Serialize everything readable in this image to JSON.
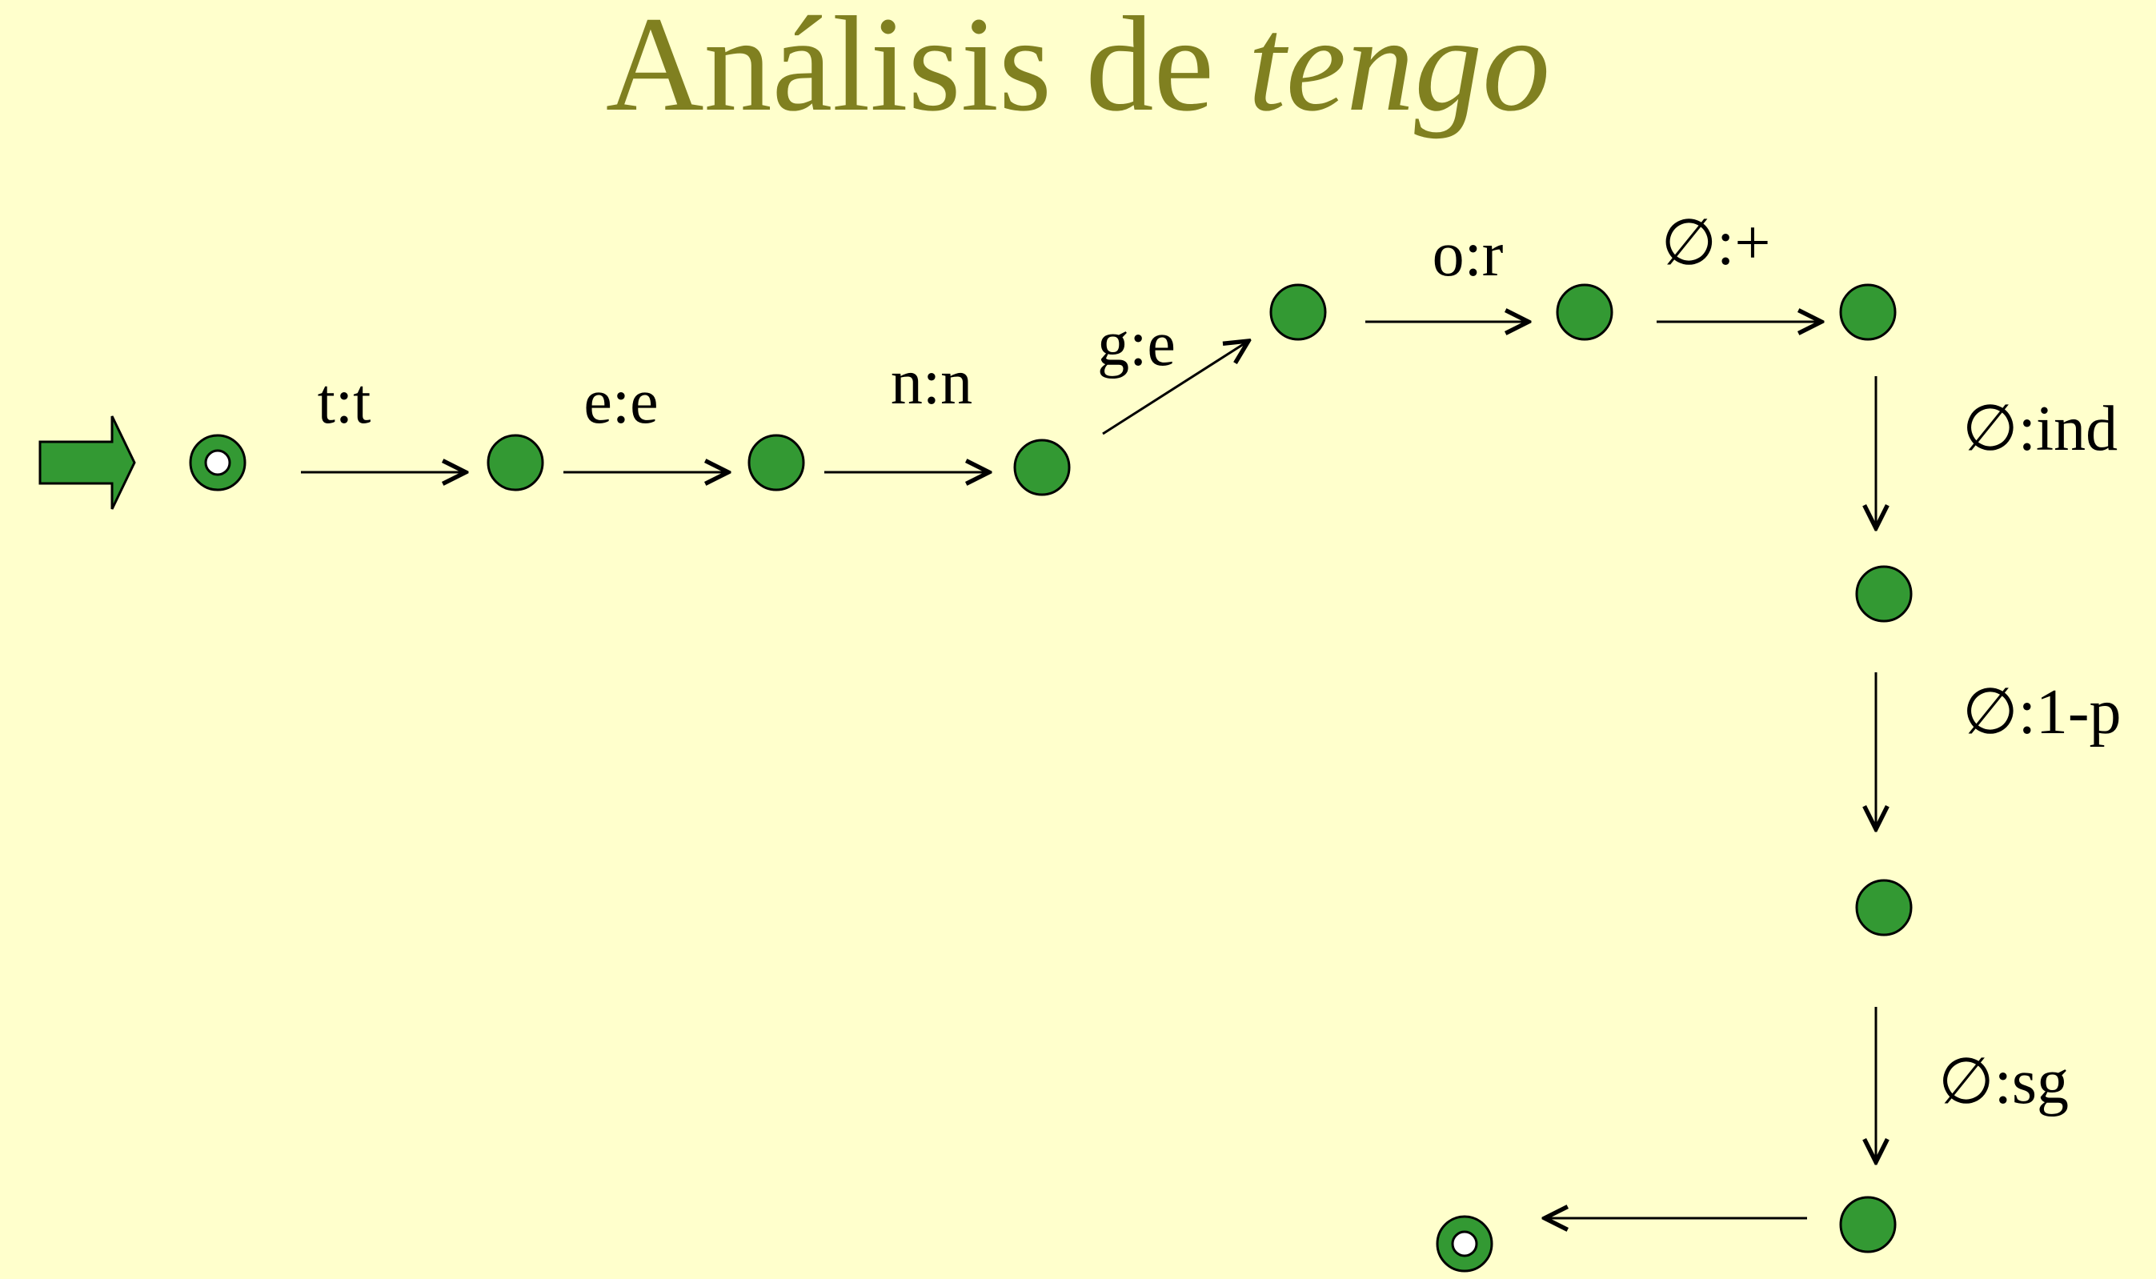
{
  "slide": {
    "title_main": "Análisis de",
    "title_italic": "tengo"
  },
  "colors": {
    "background": "#ffffcc",
    "title": "#808020",
    "node_fill": "#339933",
    "node_stroke": "#000000",
    "edge": "#000000"
  },
  "icons": {
    "start_marker": "block-arrow-right-icon"
  },
  "transitions": [
    {
      "label": "t:t"
    },
    {
      "label": "e:e"
    },
    {
      "label": "n:n"
    },
    {
      "label": "g:e"
    },
    {
      "label": "o:r"
    },
    {
      "label": "∅:+"
    },
    {
      "label": "∅:ind"
    },
    {
      "label": "∅:1-p"
    },
    {
      "label": "∅:sg"
    }
  ]
}
